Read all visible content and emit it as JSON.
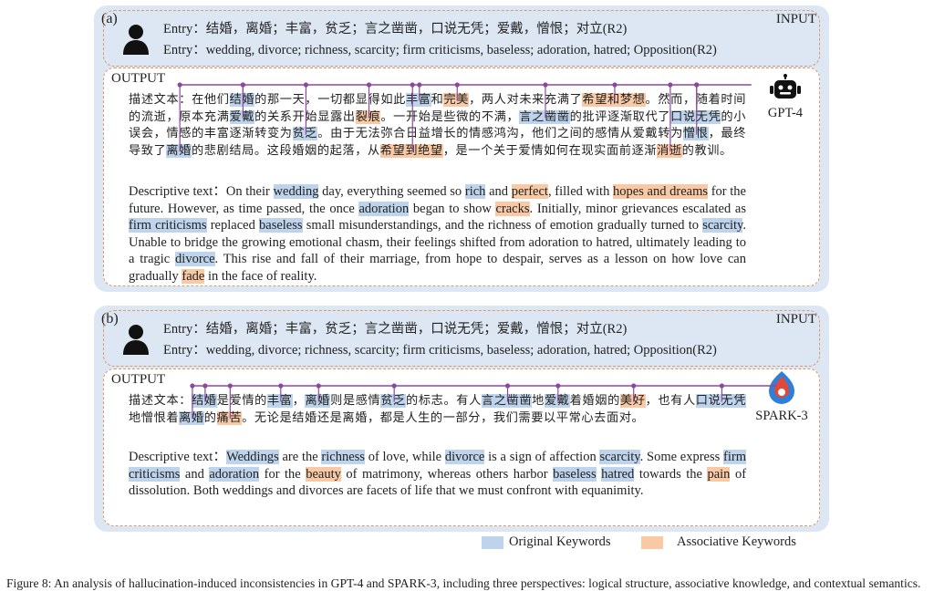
{
  "panels": [
    {
      "label": "(a)",
      "tag": "INPUT",
      "entry_zh": "Entry：结婚，离婚；丰富，贫乏；言之凿凿，口说无凭；爱戴，憎恨；对立(R2)",
      "entry_en": "Entry：wedding, divorce; richness, scarcity; firm criticisms, baseless; adoration, hatred; Opposition(R2)",
      "output_label": "OUTPUT",
      "model": "GPT-4",
      "zh_segments": [
        {
          "t": "描述文本：在他们",
          "k": "n"
        },
        {
          "t": "结婚",
          "k": "b"
        },
        {
          "t": "的那一天，一切都显得如此",
          "k": "n"
        },
        {
          "t": "丰富",
          "k": "b"
        },
        {
          "t": "和",
          "k": "n"
        },
        {
          "t": "完美",
          "k": "o"
        },
        {
          "t": "，两人对未来充满了",
          "k": "n"
        },
        {
          "t": "希望和梦想",
          "k": "o"
        },
        {
          "t": "。然而，随着时间的流逝，原本充满",
          "k": "n"
        },
        {
          "t": "爱戴",
          "k": "b"
        },
        {
          "t": "的关系开始显露出",
          "k": "n"
        },
        {
          "t": "裂痕",
          "k": "o"
        },
        {
          "t": "。一开始是些微的不满，",
          "k": "n"
        },
        {
          "t": "言之凿凿",
          "k": "b"
        },
        {
          "t": "的批评逐渐取代了",
          "k": "n"
        },
        {
          "t": "口说无凭",
          "k": "b"
        },
        {
          "t": "的小误会，情感的丰富逐渐转变为",
          "k": "n"
        },
        {
          "t": "贫乏",
          "k": "b"
        },
        {
          "t": "。由于无法弥合日益增长的情感鸿沟，他们之间的感情从爱戴转为",
          "k": "n"
        },
        {
          "t": "憎恨",
          "k": "b"
        },
        {
          "t": "，最终导致了",
          "k": "n"
        },
        {
          "t": "离婚",
          "k": "b"
        },
        {
          "t": "的悲剧结局。这段婚姻的起落，从",
          "k": "n"
        },
        {
          "t": "希望到绝望",
          "k": "o"
        },
        {
          "t": "，是一个关于爱情如何在现实面前逐渐",
          "k": "n"
        },
        {
          "t": "消逝",
          "k": "o"
        },
        {
          "t": "的教训。",
          "k": "n"
        }
      ],
      "en_segments": [
        {
          "t": "Descriptive text：On their ",
          "k": "n"
        },
        {
          "t": "wedding",
          "k": "b"
        },
        {
          "t": " day, everything seemed so ",
          "k": "n"
        },
        {
          "t": "rich",
          "k": "b"
        },
        {
          "t": " and ",
          "k": "n"
        },
        {
          "t": "perfect",
          "k": "o"
        },
        {
          "t": ", filled with ",
          "k": "n"
        },
        {
          "t": "hopes and dreams",
          "k": "o"
        },
        {
          "t": " for the future. However, as time passed, the once ",
          "k": "n"
        },
        {
          "t": "adoration",
          "k": "b"
        },
        {
          "t": " began to show ",
          "k": "n"
        },
        {
          "t": "cracks",
          "k": "o"
        },
        {
          "t": ". Initially, minor grievances escalated as ",
          "k": "n"
        },
        {
          "t": "firm criticisms",
          "k": "b"
        },
        {
          "t": " replaced ",
          "k": "n"
        },
        {
          "t": "baseless",
          "k": "b"
        },
        {
          "t": " small misunderstandings, and the richness of emotion gradually turned to ",
          "k": "n"
        },
        {
          "t": "scarcity",
          "k": "b"
        },
        {
          "t": ". Unable to bridge the growing emotional chasm, their feelings shifted from adoration to hatred, ultimately leading to a tragic ",
          "k": "n"
        },
        {
          "t": "divorce",
          "k": "b"
        },
        {
          "t": ". This rise and fall of their marriage, from hope to despair, serves as a lesson on how love can gradually ",
          "k": "n"
        },
        {
          "t": "fade",
          "k": "o"
        },
        {
          "t": " in the face of reality.",
          "k": "n"
        }
      ]
    },
    {
      "label": "(b)",
      "tag": "INPUT",
      "entry_zh": "Entry：结婚，离婚；丰富，贫乏；言之凿凿，口说无凭；爱戴，憎恨；对立(R2)",
      "entry_en": "Entry：wedding, divorce; richness, scarcity; firm criticisms, baseless; adoration, hatred; Opposition(R2)",
      "output_label": "OUTPUT",
      "model": "SPARK-3",
      "zh_segments": [
        {
          "t": "描述文本：",
          "k": "n"
        },
        {
          "t": "结婚",
          "k": "b"
        },
        {
          "t": "是爱情的",
          "k": "n"
        },
        {
          "t": "丰富",
          "k": "b"
        },
        {
          "t": "，",
          "k": "n"
        },
        {
          "t": "离婚",
          "k": "b"
        },
        {
          "t": "则是感情",
          "k": "n"
        },
        {
          "t": "贫乏",
          "k": "b"
        },
        {
          "t": "的标志。有人",
          "k": "n"
        },
        {
          "t": "言之凿凿",
          "k": "b"
        },
        {
          "t": "地",
          "k": "n"
        },
        {
          "t": "爱戴",
          "k": "b"
        },
        {
          "t": "着婚姻的",
          "k": "n"
        },
        {
          "t": "美好",
          "k": "o"
        },
        {
          "t": "，也有人",
          "k": "n"
        },
        {
          "t": "口说无凭",
          "k": "b"
        },
        {
          "t": "地憎恨着",
          "k": "n"
        },
        {
          "t": "离婚",
          "k": "b"
        },
        {
          "t": "的",
          "k": "n"
        },
        {
          "t": "痛苦",
          "k": "o"
        },
        {
          "t": "。无论是结婚还是离婚，都是人生的一部分，我们需要以平常心去面对。",
          "k": "n"
        }
      ],
      "en_segments": [
        {
          "t": "Descriptive text：",
          "k": "n"
        },
        {
          "t": "Weddings",
          "k": "b"
        },
        {
          "t": " are the ",
          "k": "n"
        },
        {
          "t": "richness",
          "k": "b"
        },
        {
          "t": " of love, while ",
          "k": "n"
        },
        {
          "t": "divorce",
          "k": "b"
        },
        {
          "t": " is a sign of affection ",
          "k": "n"
        },
        {
          "t": "scarcity",
          "k": "b"
        },
        {
          "t": ". Some express ",
          "k": "n"
        },
        {
          "t": "firm criticisms",
          "k": "b"
        },
        {
          "t": " and ",
          "k": "n"
        },
        {
          "t": "adoration",
          "k": "b"
        },
        {
          "t": " for the ",
          "k": "n"
        },
        {
          "t": "beauty",
          "k": "o"
        },
        {
          "t": " of matrimony, whereas others harbor ",
          "k": "n"
        },
        {
          "t": "baseless",
          "k": "b"
        },
        {
          "t": " ",
          "k": "n"
        },
        {
          "t": "hatred",
          "k": "b"
        },
        {
          "t": " towards the ",
          "k": "n"
        },
        {
          "t": "pain",
          "k": "o"
        },
        {
          "t": " of dissolution. Both weddings and divorces are facets of life that we must confront with equanimity.",
          "k": "n"
        }
      ]
    }
  ],
  "legend": {
    "original": "Original Keywords",
    "associative": "Associative Keywords"
  },
  "colors": {
    "panel_bg": "#dde7f4",
    "original_highlight": "#bed4ec",
    "associative_highlight": "#f8c9a4",
    "dashed_border": "#d99a6c",
    "link_line": "#8a4a9c"
  },
  "caption": "Figure 8: An analysis of hallucination-induced inconsistencies in GPT-4 and SPARK-3, including three perspectives: logical structure, associative knowledge, and contextual semantics."
}
